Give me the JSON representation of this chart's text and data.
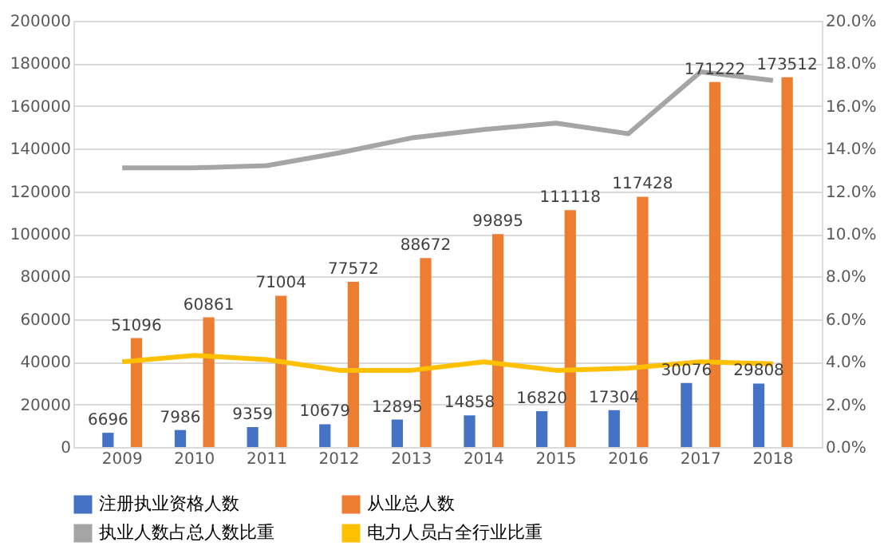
{
  "chart_data": {
    "type": "bar",
    "categories": [
      "2009",
      "2010",
      "2011",
      "2012",
      "2013",
      "2014",
      "2015",
      "2016",
      "2017",
      "2018"
    ],
    "series": [
      {
        "name": "注册执业资格人数",
        "color": "#4472c4",
        "values": [
          6696,
          7986,
          9359,
          10679,
          12895,
          14858,
          16820,
          17304,
          30076,
          29808
        ],
        "value_labels": [
          "6696",
          "7986",
          "9359",
          "10679",
          "12895",
          "14858",
          "16820",
          "17304",
          "30076",
          "29808"
        ]
      },
      {
        "name": "从业总人数",
        "color": "#ed7d31",
        "values": [
          51096,
          60861,
          71004,
          77572,
          88672,
          99895,
          111118,
          117428,
          171222,
          173512
        ],
        "value_labels": [
          "51096",
          "60861",
          "71004",
          "77572",
          "88672",
          "99895",
          "111118",
          "117428",
          "171222",
          "173512"
        ]
      },
      {
        "name": "执业人数占总人数比重",
        "type": "line",
        "axis": "y2",
        "color": "#a5a5a5",
        "values": [
          13.1,
          13.1,
          13.2,
          13.8,
          14.5,
          14.9,
          15.2,
          14.7,
          17.6,
          17.2
        ]
      },
      {
        "name": "电力人员占全行业比重",
        "type": "line",
        "axis": "y2",
        "color": "#ffc000",
        "values": [
          4.0,
          4.3,
          4.1,
          3.6,
          3.6,
          4.0,
          3.6,
          3.7,
          4.0,
          3.9
        ]
      }
    ],
    "ylim": [
      0,
      200000
    ],
    "yticks": [
      0,
      20000,
      40000,
      60000,
      80000,
      100000,
      120000,
      140000,
      160000,
      180000,
      200000
    ],
    "y2lim": [
      0,
      20
    ],
    "y2ticks": [
      {
        "value": 0,
        "label": "0.0%"
      },
      {
        "value": 2,
        "label": "2.0%"
      },
      {
        "value": 4,
        "label": "4.0%"
      },
      {
        "value": 6,
        "label": "6.0%"
      },
      {
        "value": 8,
        "label": "8.0%"
      },
      {
        "value": 10,
        "label": "10.0%"
      },
      {
        "value": 12,
        "label": "12.0%"
      },
      {
        "value": 14,
        "label": "14.0%"
      },
      {
        "value": 16,
        "label": "16.0%"
      },
      {
        "value": 18,
        "label": "18.0%"
      },
      {
        "value": 20,
        "label": "20.0%"
      }
    ],
    "grid": "y",
    "legend": "bottom",
    "marker": "none",
    "line_style": "solid"
  }
}
